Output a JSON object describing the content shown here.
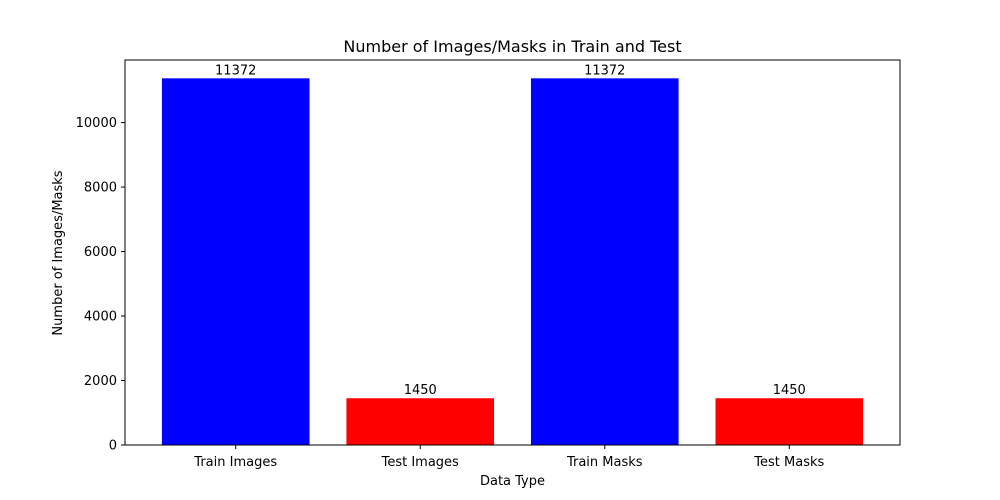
{
  "chart_data": {
    "type": "bar",
    "title": "Number of Images/Masks in Train and Test",
    "xlabel": "Data Type",
    "ylabel": "Number of Images/Masks",
    "categories": [
      "Train Images",
      "Test Images",
      "Train Masks",
      "Test Masks"
    ],
    "values": [
      11372,
      1450,
      11372,
      1450
    ],
    "data_labels": [
      "11372",
      "1450",
      "11372",
      "1450"
    ],
    "colors": [
      "#0000ff",
      "#ff0000",
      "#0000ff",
      "#ff0000"
    ],
    "yticks": [
      0,
      2000,
      4000,
      6000,
      8000,
      10000
    ],
    "ytick_labels": [
      "0",
      "2000",
      "4000",
      "6000",
      "8000",
      "10000"
    ],
    "ylim": [
      0,
      11940.6
    ],
    "grid": false,
    "legend": false
  }
}
